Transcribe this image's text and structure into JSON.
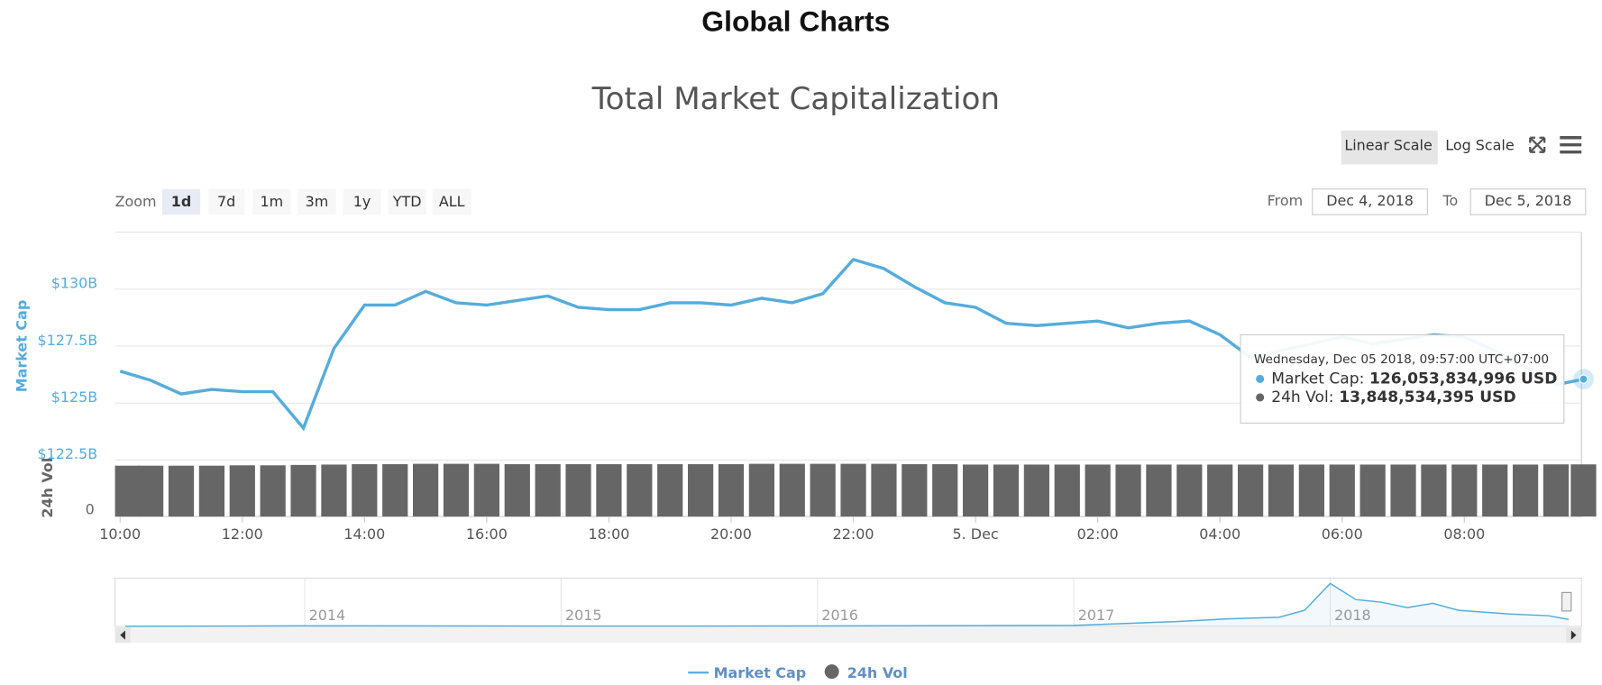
{
  "header": {
    "title": "Global Charts"
  },
  "controls": {
    "scale_buttons": [
      "Linear Scale",
      "Log Scale"
    ],
    "zoom_label": "Zoom",
    "zoom_buttons": [
      "1d",
      "7d",
      "1m",
      "3m",
      "1y",
      "YTD",
      "ALL"
    ],
    "from_label": "From",
    "from": "Dec 4, 2018",
    "to_label": "To",
    "to": "Dec 5, 2018"
  },
  "chart_data": {
    "type": "line",
    "title": "Total Market Capitalization",
    "x": [
      "2018-12-04T10:00",
      "2018-12-04T10:30",
      "2018-12-04T11:00",
      "2018-12-04T11:30",
      "2018-12-04T12:00",
      "2018-12-04T12:30",
      "2018-12-04T13:00",
      "2018-12-04T13:30",
      "2018-12-04T14:00",
      "2018-12-04T14:30",
      "2018-12-04T15:00",
      "2018-12-04T15:30",
      "2018-12-04T16:00",
      "2018-12-04T16:30",
      "2018-12-04T17:00",
      "2018-12-04T17:30",
      "2018-12-04T18:00",
      "2018-12-04T18:30",
      "2018-12-04T19:00",
      "2018-12-04T19:30",
      "2018-12-04T20:00",
      "2018-12-04T20:30",
      "2018-12-04T21:00",
      "2018-12-04T21:30",
      "2018-12-04T22:00",
      "2018-12-04T22:30",
      "2018-12-04T23:00",
      "2018-12-04T23:30",
      "2018-12-05T00:00",
      "2018-12-05T00:30",
      "2018-12-05T01:00",
      "2018-12-05T01:30",
      "2018-12-05T02:00",
      "2018-12-05T02:30",
      "2018-12-05T03:00",
      "2018-12-05T03:30",
      "2018-12-05T04:00",
      "2018-12-05T04:30",
      "2018-12-05T05:00",
      "2018-12-05T05:30",
      "2018-12-05T06:00",
      "2018-12-05T06:30",
      "2018-12-05T07:00",
      "2018-12-05T07:30",
      "2018-12-05T08:00",
      "2018-12-05T08:30",
      "2018-12-05T09:00",
      "2018-12-05T09:30",
      "2018-12-05T09:57"
    ],
    "series": [
      {
        "name": "Market Cap",
        "color": "#55acdc",
        "values": [
          126.4,
          126.0,
          125.4,
          125.6,
          125.5,
          125.5,
          123.9,
          127.4,
          129.3,
          129.3,
          129.9,
          129.4,
          129.3,
          129.5,
          129.7,
          129.2,
          129.1,
          129.1,
          129.4,
          129.4,
          129.3,
          129.6,
          129.4,
          129.8,
          131.3,
          130.9,
          130.1,
          129.4,
          129.2,
          128.5,
          128.4,
          128.5,
          128.6,
          128.3,
          128.5,
          128.6,
          128.0,
          127.0,
          127.3,
          127.6,
          127.9,
          127.6,
          127.8,
          128.0,
          127.9,
          127.3,
          126.6,
          125.8,
          126.05
        ]
      },
      {
        "name": "24h Vol",
        "color": "#666666",
        "axis": "y2",
        "values": [
          13.5,
          13.5,
          13.5,
          13.5,
          13.6,
          13.6,
          13.7,
          13.8,
          13.9,
          13.9,
          14.0,
          14.0,
          14.0,
          13.9,
          13.9,
          13.9,
          13.9,
          13.9,
          13.9,
          13.9,
          13.9,
          14.0,
          14.0,
          14.0,
          14.0,
          14.0,
          13.9,
          13.9,
          13.8,
          13.8,
          13.8,
          13.8,
          13.8,
          13.8,
          13.8,
          13.8,
          13.8,
          13.8,
          13.8,
          13.8,
          13.8,
          13.8,
          13.8,
          13.8,
          13.8,
          13.8,
          13.8,
          13.85,
          13.85
        ]
      }
    ],
    "y_label": "Market Cap",
    "y2_label": "24h Vol",
    "xlim": [
      "2018-12-04T09:55",
      "2018-12-05T09:55"
    ],
    "xticks": [
      {
        "value": "2018-12-04T10:00",
        "label": "10:00"
      },
      {
        "value": "2018-12-04T12:00",
        "label": "12:00"
      },
      {
        "value": "2018-12-04T14:00",
        "label": "14:00"
      },
      {
        "value": "2018-12-04T16:00",
        "label": "16:00"
      },
      {
        "value": "2018-12-04T18:00",
        "label": "18:00"
      },
      {
        "value": "2018-12-04T20:00",
        "label": "20:00"
      },
      {
        "value": "2018-12-04T22:00",
        "label": "22:00"
      },
      {
        "value": "2018-12-05T00:00",
        "label": "5. Dec"
      },
      {
        "value": "2018-12-05T02:00",
        "label": "02:00"
      },
      {
        "value": "2018-12-05T04:00",
        "label": "04:00"
      },
      {
        "value": "2018-12-05T06:00",
        "label": "06:00"
      },
      {
        "value": "2018-12-05T08:00",
        "label": "08:00"
      }
    ],
    "ylim": [
      122.5,
      132.5
    ],
    "yticks": [
      {
        "value": 122.5,
        "label": "$122.5B"
      },
      {
        "value": 125,
        "label": "$125B"
      },
      {
        "value": 127.5,
        "label": "$127.5B"
      },
      {
        "value": 130,
        "label": "$130B"
      }
    ],
    "y2lim": [
      0,
      15
    ],
    "y2ticks": [
      0
    ],
    "grid": true,
    "tooltip": {
      "title": "Wednesday, Dec 05 2018, 09:57:00 UTC+07:00",
      "items": [
        {
          "name": "Market Cap:",
          "value": "126,053,834,996 USD"
        },
        {
          "name": "24h Vol:",
          "value": "13,848,534,395 USD"
        }
      ]
    },
    "navigator": {
      "x": [
        2013.3,
        2014,
        2015,
        2016,
        2017,
        2017.4,
        2017.6,
        2017.8,
        2017.9,
        2018,
        2018.1,
        2018.2,
        2018.3,
        2018.4,
        2018.5,
        2018.7,
        2018.85,
        2018.93
      ],
      "values": [
        1,
        10,
        5,
        7,
        18,
        90,
        140,
        170,
        300,
        800,
        500,
        450,
        350,
        430,
        300,
        230,
        200,
        130
      ],
      "xlim": [
        2013.26,
        2018.98
      ],
      "ylim": [
        0,
        900
      ],
      "xticks": [
        2014,
        2015,
        2016,
        2017,
        2018
      ]
    }
  }
}
